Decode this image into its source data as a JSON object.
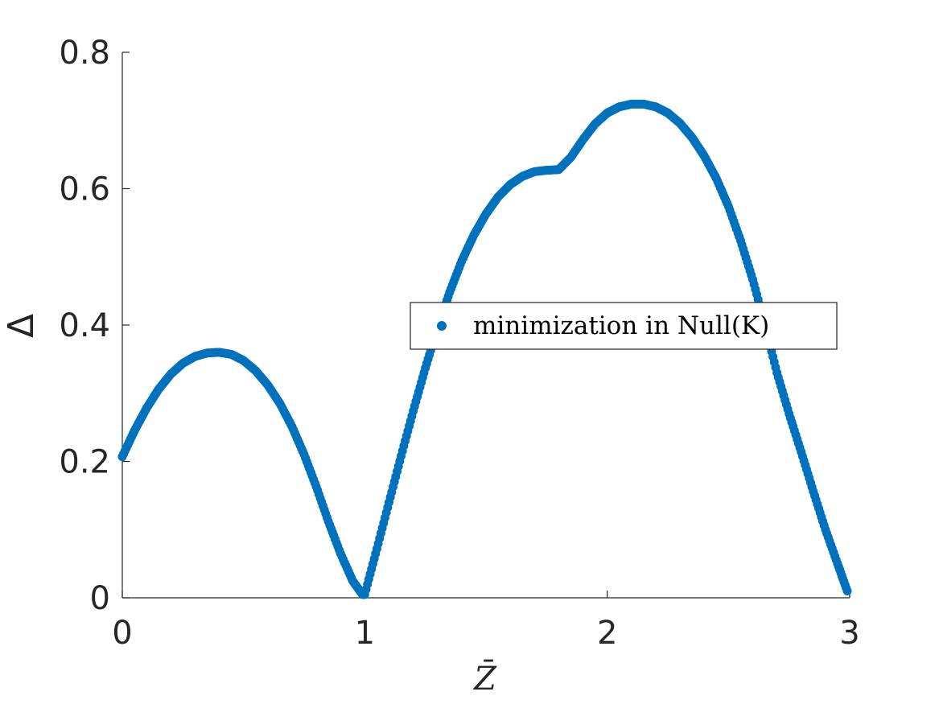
{
  "chart_data": {
    "type": "scatter",
    "xlabel": "Z̄",
    "ylabel": "Δ",
    "xlim": [
      0,
      3
    ],
    "ylim": [
      0,
      0.8
    ],
    "xticks": [
      0,
      1,
      2,
      3
    ],
    "xtick_labels": [
      "0",
      "1",
      "2",
      "3"
    ],
    "yticks": [
      0,
      0.2,
      0.4,
      0.6,
      0.8
    ],
    "ytick_labels": [
      "0",
      "0.2",
      "0.4",
      "0.6",
      "0.8"
    ],
    "grid": false,
    "legend_position": "right",
    "marker_color": "#0072BD",
    "series": [
      {
        "name": "minimization in Null(K)",
        "points": [
          [
            0.0,
            0.207
          ],
          [
            0.05,
            0.245
          ],
          [
            0.1,
            0.278
          ],
          [
            0.15,
            0.306
          ],
          [
            0.2,
            0.328
          ],
          [
            0.25,
            0.344
          ],
          [
            0.3,
            0.354
          ],
          [
            0.35,
            0.359
          ],
          [
            0.4,
            0.36
          ],
          [
            0.45,
            0.357
          ],
          [
            0.5,
            0.348
          ],
          [
            0.55,
            0.333
          ],
          [
            0.6,
            0.312
          ],
          [
            0.65,
            0.285
          ],
          [
            0.7,
            0.251
          ],
          [
            0.75,
            0.21
          ],
          [
            0.8,
            0.163
          ],
          [
            0.85,
            0.112
          ],
          [
            0.9,
            0.065
          ],
          [
            0.95,
            0.025
          ],
          [
            0.99,
            0.005
          ],
          [
            1.0,
            0.005
          ],
          [
            1.05,
            0.072
          ],
          [
            1.1,
            0.14
          ],
          [
            1.15,
            0.208
          ],
          [
            1.2,
            0.274
          ],
          [
            1.25,
            0.337
          ],
          [
            1.3,
            0.396
          ],
          [
            1.35,
            0.448
          ],
          [
            1.4,
            0.494
          ],
          [
            1.45,
            0.532
          ],
          [
            1.5,
            0.563
          ],
          [
            1.55,
            0.588
          ],
          [
            1.6,
            0.606
          ],
          [
            1.65,
            0.618
          ],
          [
            1.7,
            0.625
          ],
          [
            1.75,
            0.627
          ],
          [
            1.8,
            0.628
          ],
          [
            1.85,
            0.646
          ],
          [
            1.9,
            0.672
          ],
          [
            1.95,
            0.695
          ],
          [
            2.0,
            0.711
          ],
          [
            2.05,
            0.72
          ],
          [
            2.1,
            0.724
          ],
          [
            2.15,
            0.724
          ],
          [
            2.2,
            0.72
          ],
          [
            2.25,
            0.711
          ],
          [
            2.3,
            0.696
          ],
          [
            2.35,
            0.675
          ],
          [
            2.4,
            0.648
          ],
          [
            2.45,
            0.615
          ],
          [
            2.5,
            0.574
          ],
          [
            2.55,
            0.524
          ],
          [
            2.6,
            0.467
          ],
          [
            2.65,
            0.401
          ],
          [
            2.7,
            0.33
          ],
          [
            2.75,
            0.27
          ],
          [
            2.8,
            0.214
          ],
          [
            2.85,
            0.156
          ],
          [
            2.9,
            0.1
          ],
          [
            2.95,
            0.05
          ],
          [
            2.99,
            0.01
          ]
        ]
      }
    ]
  }
}
